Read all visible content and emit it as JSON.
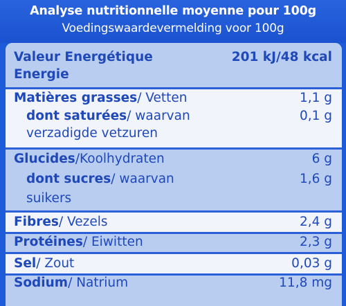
{
  "header": {
    "title_fr": "Analyse nutritionnelle moyenne pour 100g",
    "title_nl": "Voedingswaardevermelding voor 100g"
  },
  "rows": {
    "energy": {
      "label_fr": "Valeur Energétique",
      "label_nl": "Energie",
      "value": "201 kJ/48 kcal"
    },
    "fat": {
      "label_fr": "Matières grasses",
      "label_nl": "/ Vetten",
      "value": "1,1 g"
    },
    "saturated": {
      "label_fr": "dont saturées",
      "label_nl": "/ waarvan",
      "label_nl2": "verzadigde vetzuren",
      "value": "0,1 g"
    },
    "carbs": {
      "label_fr": "Glucides",
      "label_nl": "/Koolhydraten",
      "value": "6 g"
    },
    "sugars": {
      "label_fr": "dont sucres",
      "label_nl": "/ waarvan",
      "label_nl2": "suikers",
      "value": "1,6 g"
    },
    "fibre": {
      "label_fr": "Fibres",
      "label_nl": "/ Vezels",
      "value": "2,4 g"
    },
    "protein": {
      "label_fr": "Protéines",
      "label_nl": "/ Eiwitten",
      "value": "2,3 g"
    },
    "salt": {
      "label_fr": "Sel",
      "label_nl": "/ Zout",
      "value": "0,03 g"
    },
    "sodium": {
      "label_fr": "Sodium",
      "label_nl": "/ Natrium",
      "value": "11,8 mg"
    }
  },
  "colors": {
    "brand_blue": "#1e5bd8",
    "text_blue": "#1f48b8",
    "row_shade": "#b9cdf1",
    "panel_bg": "#f2f4fb"
  }
}
